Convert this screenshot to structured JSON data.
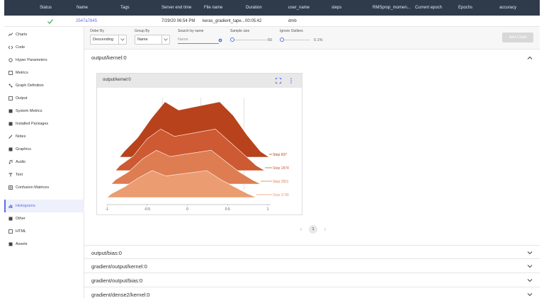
{
  "table": {
    "headers": [
      "Status",
      "Name",
      "Tags",
      "Server end time",
      "File name",
      "Duration",
      "user_name",
      "steps",
      "RMSprop_momen...",
      "Current epoch",
      "Epochs",
      "accuracy"
    ],
    "row": {
      "name": "2547a7845",
      "server_end_time": "7/29/20 06:54 PM",
      "file_name": "keras_gradient_tape...",
      "duration": "00:05:42",
      "user_name": "dmb"
    }
  },
  "sidebar": {
    "items": [
      {
        "label": "Charts",
        "icon": "chart-icon"
      },
      {
        "label": "Code",
        "icon": "code-icon"
      },
      {
        "label": "Hyper Parameters",
        "icon": "hyperparameters-icon"
      },
      {
        "label": "Metrics",
        "icon": "metrics-icon"
      },
      {
        "label": "Graph Definition",
        "icon": "graph-icon"
      },
      {
        "label": "Output",
        "icon": "output-icon"
      },
      {
        "label": "System Metrics",
        "icon": "system-metrics-icon"
      },
      {
        "label": "Installed Packages",
        "icon": "packages-icon"
      },
      {
        "label": "Notes",
        "icon": "notes-icon"
      },
      {
        "label": "Graphics",
        "icon": "graphics-icon"
      },
      {
        "label": "Audio",
        "icon": "audio-icon"
      },
      {
        "label": "Text",
        "icon": "text-icon"
      },
      {
        "label": "Confusion Matrices",
        "icon": "confusion-matrix-icon"
      },
      {
        "label": "Histograms",
        "icon": "histogram-icon"
      },
      {
        "label": "Other",
        "icon": "other-icon"
      },
      {
        "label": "HTML",
        "icon": "html-icon"
      },
      {
        "label": "Assets",
        "icon": "assets-icon"
      }
    ],
    "active": "Histograms"
  },
  "toolbar": {
    "order_by_label": "Order By",
    "order_by_value": "Descending",
    "group_by_label": "Group By",
    "group_by_value": "Name",
    "search_label": "Search by name",
    "search_placeholder": "Name",
    "sample_size_label": "Sample size",
    "sample_size_value": "50",
    "ignore_outliers_label": "Ignore Outliers",
    "ignore_outliers_value": "0.1%",
    "add_chart_label": "Add Chart"
  },
  "sections": [
    {
      "title": "output/kernel:0",
      "expanded": true
    },
    {
      "title": "output/bias:0",
      "expanded": false
    },
    {
      "title": "gradient/output/kernel:0",
      "expanded": false
    },
    {
      "title": "gradient/output/bias:0",
      "expanded": false
    },
    {
      "title": "gradient/dense2/kernel:0",
      "expanded": false
    }
  ],
  "card": {
    "title": "output/kernel:0"
  },
  "pager": {
    "current": "1"
  },
  "colors": {
    "topbar": "#2f3a4a",
    "accent": "#5b6fe3",
    "step_colors": [
      "#b8421c",
      "#cd5a32",
      "#de7d52",
      "#eb9c70",
      "#f3b48b"
    ]
  },
  "chart_data": {
    "type": "area",
    "xlim": [
      -1,
      1
    ],
    "x_ticks": [
      "-1",
      "-0.5",
      "0",
      "0.5",
      "1"
    ],
    "series": [
      {
        "name": "Step 937",
        "values": [
          0.1,
          0.35,
          0.7,
          1.0,
          0.85,
          0.9,
          0.95,
          1.0,
          0.75,
          0.4,
          0.1
        ]
      },
      {
        "name": "Step 1874",
        "values": [
          0.1,
          0.3,
          0.65,
          0.85,
          0.7,
          0.75,
          0.8,
          0.85,
          0.6,
          0.35,
          0.1
        ]
      },
      {
        "name": "Step 2811",
        "values": [
          0.1,
          0.3,
          0.6,
          0.8,
          0.65,
          0.7,
          0.75,
          0.8,
          0.55,
          0.3,
          0.1
        ]
      },
      {
        "name": "Step 3748",
        "values": [
          0.1,
          0.3,
          0.55,
          0.75,
          0.6,
          0.65,
          0.7,
          0.75,
          0.5,
          0.3,
          0.1
        ]
      }
    ]
  }
}
